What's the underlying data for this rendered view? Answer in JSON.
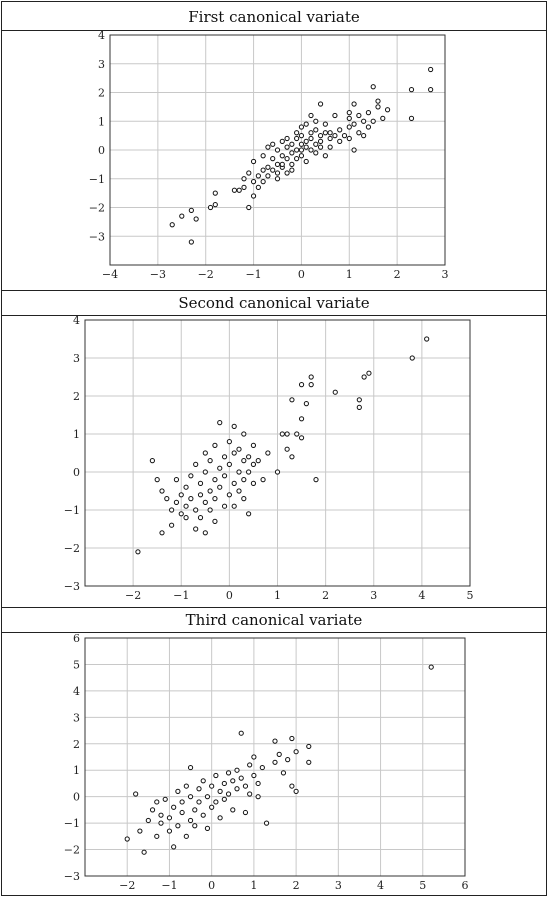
{
  "chart_data": [
    {
      "type": "scatter",
      "title": "First canonical variate",
      "xlim": [
        -4,
        3
      ],
      "ylim": [
        -4,
        4
      ],
      "xticks": [
        -4,
        -3,
        -2,
        -1,
        0,
        1,
        2,
        3
      ],
      "yticks": [
        -3,
        -2,
        -1,
        0,
        1,
        2,
        3,
        4
      ],
      "grid": true,
      "points": [
        [
          -2.7,
          -2.6
        ],
        [
          -2.5,
          -2.3
        ],
        [
          -2.3,
          -2.1
        ],
        [
          -2.3,
          -3.2
        ],
        [
          -2.2,
          -2.4
        ],
        [
          -1.9,
          -2.0
        ],
        [
          -1.8,
          -1.9
        ],
        [
          -1.8,
          -1.5
        ],
        [
          -1.4,
          -1.4
        ],
        [
          -1.3,
          -1.4
        ],
        [
          -1.2,
          -1.3
        ],
        [
          -1.2,
          -1.0
        ],
        [
          -1.1,
          -0.8
        ],
        [
          -1.1,
          -2.0
        ],
        [
          -1.0,
          -1.6
        ],
        [
          -1.0,
          -0.4
        ],
        [
          -1.0,
          -1.1
        ],
        [
          -0.9,
          -1.3
        ],
        [
          -0.9,
          -0.9
        ],
        [
          -0.8,
          -0.7
        ],
        [
          -0.8,
          -1.1
        ],
        [
          -0.8,
          -0.2
        ],
        [
          -0.7,
          -0.6
        ],
        [
          -0.7,
          -0.9
        ],
        [
          -0.7,
          0.1
        ],
        [
          -0.6,
          -0.7
        ],
        [
          -0.6,
          -0.3
        ],
        [
          -0.6,
          0.2
        ],
        [
          -0.5,
          -0.5
        ],
        [
          -0.5,
          -1.0
        ],
        [
          -0.5,
          0.0
        ],
        [
          -0.5,
          -0.8
        ],
        [
          -0.4,
          -0.2
        ],
        [
          -0.4,
          -0.6
        ],
        [
          -0.4,
          0.3
        ],
        [
          -0.4,
          -0.5
        ],
        [
          -0.3,
          -0.8
        ],
        [
          -0.3,
          0.1
        ],
        [
          -0.3,
          -0.3
        ],
        [
          -0.3,
          0.4
        ],
        [
          -0.2,
          -0.1
        ],
        [
          -0.2,
          -0.5
        ],
        [
          -0.2,
          0.2
        ],
        [
          -0.2,
          -0.7
        ],
        [
          -0.1,
          0.0
        ],
        [
          -0.1,
          0.4
        ],
        [
          -0.1,
          -0.3
        ],
        [
          -0.1,
          0.6
        ],
        [
          0.0,
          0.2
        ],
        [
          0.0,
          -0.2
        ],
        [
          0.0,
          0.5
        ],
        [
          0.0,
          0.8
        ],
        [
          0.0,
          0.0
        ],
        [
          0.1,
          0.3
        ],
        [
          0.1,
          -0.4
        ],
        [
          0.1,
          0.9
        ],
        [
          0.1,
          0.1
        ],
        [
          0.2,
          0.6
        ],
        [
          0.2,
          0.0
        ],
        [
          0.2,
          1.2
        ],
        [
          0.2,
          0.4
        ],
        [
          0.3,
          0.2
        ],
        [
          0.3,
          -0.1
        ],
        [
          0.3,
          0.7
        ],
        [
          0.3,
          1.0
        ],
        [
          0.4,
          0.5
        ],
        [
          0.4,
          0.1
        ],
        [
          0.4,
          1.6
        ],
        [
          0.4,
          0.3
        ],
        [
          0.5,
          0.6
        ],
        [
          0.5,
          -0.2
        ],
        [
          0.5,
          0.9
        ],
        [
          0.6,
          0.4
        ],
        [
          0.6,
          0.1
        ],
        [
          0.6,
          0.6
        ],
        [
          0.7,
          0.5
        ],
        [
          0.7,
          1.2
        ],
        [
          0.8,
          0.3
        ],
        [
          0.8,
          0.7
        ],
        [
          0.9,
          0.5
        ],
        [
          1.0,
          1.1
        ],
        [
          1.0,
          0.8
        ],
        [
          1.0,
          0.4
        ],
        [
          1.0,
          1.3
        ],
        [
          1.1,
          0.0
        ],
        [
          1.1,
          1.6
        ],
        [
          1.1,
          0.9
        ],
        [
          1.2,
          0.6
        ],
        [
          1.2,
          1.2
        ],
        [
          1.3,
          0.5
        ],
        [
          1.3,
          1.0
        ],
        [
          1.4,
          0.8
        ],
        [
          1.4,
          1.3
        ],
        [
          1.5,
          2.2
        ],
        [
          1.5,
          1.0
        ],
        [
          1.6,
          1.7
        ],
        [
          1.6,
          1.5
        ],
        [
          1.7,
          1.1
        ],
        [
          1.8,
          1.4
        ],
        [
          2.3,
          2.1
        ],
        [
          2.3,
          1.1
        ],
        [
          2.7,
          2.8
        ],
        [
          2.7,
          2.1
        ]
      ]
    },
    {
      "type": "scatter",
      "title": "Second canonical variate",
      "xlim": [
        -3,
        5
      ],
      "ylim": [
        -3,
        4
      ],
      "xticks": [
        -2,
        -1,
        0,
        1,
        2,
        3,
        4,
        5
      ],
      "yticks": [
        -3,
        -2,
        -1,
        0,
        1,
        2,
        3,
        4
      ],
      "grid": true,
      "points": [
        [
          -1.9,
          -2.1
        ],
        [
          -1.6,
          0.3
        ],
        [
          -1.5,
          -0.2
        ],
        [
          -1.4,
          -1.6
        ],
        [
          -1.4,
          -0.5
        ],
        [
          -1.3,
          -0.7
        ],
        [
          -1.2,
          -1.4
        ],
        [
          -1.2,
          -1.0
        ],
        [
          -1.1,
          -0.8
        ],
        [
          -1.1,
          -0.2
        ],
        [
          -1.0,
          -1.1
        ],
        [
          -1.0,
          -0.6
        ],
        [
          -0.9,
          -0.9
        ],
        [
          -0.9,
          -1.2
        ],
        [
          -0.9,
          -0.4
        ],
        [
          -0.8,
          -0.7
        ],
        [
          -0.8,
          -0.1
        ],
        [
          -0.7,
          -1.5
        ],
        [
          -0.7,
          -1.0
        ],
        [
          -0.7,
          0.2
        ],
        [
          -0.6,
          -0.6
        ],
        [
          -0.6,
          -0.3
        ],
        [
          -0.6,
          -1.2
        ],
        [
          -0.5,
          -0.8
        ],
        [
          -0.5,
          0.5
        ],
        [
          -0.5,
          -1.6
        ],
        [
          -0.5,
          0.0
        ],
        [
          -0.4,
          -0.5
        ],
        [
          -0.4,
          -1.0
        ],
        [
          -0.4,
          0.3
        ],
        [
          -0.3,
          -0.2
        ],
        [
          -0.3,
          -0.7
        ],
        [
          -0.3,
          0.7
        ],
        [
          -0.3,
          -1.3
        ],
        [
          -0.2,
          0.1
        ],
        [
          -0.2,
          -0.4
        ],
        [
          -0.2,
          1.3
        ],
        [
          -0.1,
          -0.9
        ],
        [
          -0.1,
          0.4
        ],
        [
          -0.1,
          -0.1
        ],
        [
          0.0,
          0.2
        ],
        [
          0.0,
          -0.6
        ],
        [
          0.0,
          0.8
        ],
        [
          0.1,
          -0.3
        ],
        [
          0.1,
          0.5
        ],
        [
          0.1,
          1.2
        ],
        [
          0.1,
          -0.9
        ],
        [
          0.2,
          0.0
        ],
        [
          0.2,
          0.6
        ],
        [
          0.2,
          -0.5
        ],
        [
          0.3,
          0.3
        ],
        [
          0.3,
          -0.2
        ],
        [
          0.3,
          1.0
        ],
        [
          0.3,
          -0.7
        ],
        [
          0.4,
          0.4
        ],
        [
          0.4,
          0.0
        ],
        [
          0.4,
          -1.1
        ],
        [
          0.5,
          0.7
        ],
        [
          0.5,
          0.2
        ],
        [
          0.5,
          -0.3
        ],
        [
          0.6,
          0.3
        ],
        [
          0.7,
          -0.2
        ],
        [
          0.8,
          0.5
        ],
        [
          1.0,
          0.0
        ],
        [
          1.1,
          1.0
        ],
        [
          1.2,
          1.0
        ],
        [
          1.2,
          0.6
        ],
        [
          1.3,
          0.4
        ],
        [
          1.3,
          1.9
        ],
        [
          1.4,
          1.0
        ],
        [
          1.5,
          1.4
        ],
        [
          1.5,
          0.9
        ],
        [
          1.5,
          2.3
        ],
        [
          1.6,
          1.8
        ],
        [
          1.7,
          2.5
        ],
        [
          1.7,
          2.3
        ],
        [
          1.8,
          -0.2
        ],
        [
          2.2,
          2.1
        ],
        [
          2.7,
          1.9
        ],
        [
          2.7,
          1.7
        ],
        [
          2.8,
          2.5
        ],
        [
          2.9,
          2.6
        ],
        [
          3.8,
          3.0
        ],
        [
          4.1,
          3.5
        ]
      ]
    },
    {
      "type": "scatter",
      "title": "Third canonical variate",
      "xlim": [
        -3,
        6
      ],
      "ylim": [
        -3,
        6
      ],
      "xticks": [
        -2,
        -1,
        0,
        1,
        2,
        3,
        4,
        5,
        6
      ],
      "yticks": [
        -3,
        -2,
        -1,
        0,
        1,
        2,
        3,
        4,
        5,
        6
      ],
      "grid": true,
      "points": [
        [
          -2.0,
          -1.6
        ],
        [
          -1.8,
          0.1
        ],
        [
          -1.7,
          -1.3
        ],
        [
          -1.6,
          -2.1
        ],
        [
          -1.5,
          -0.9
        ],
        [
          -1.4,
          -0.5
        ],
        [
          -1.3,
          -1.5
        ],
        [
          -1.3,
          -0.2
        ],
        [
          -1.2,
          -1.0
        ],
        [
          -1.2,
          -0.7
        ],
        [
          -1.1,
          -0.1
        ],
        [
          -1.0,
          -1.3
        ],
        [
          -1.0,
          -0.8
        ],
        [
          -0.9,
          -0.4
        ],
        [
          -0.9,
          -1.9
        ],
        [
          -0.8,
          0.2
        ],
        [
          -0.8,
          -1.1
        ],
        [
          -0.7,
          -0.6
        ],
        [
          -0.7,
          -0.2
        ],
        [
          -0.6,
          0.4
        ],
        [
          -0.6,
          -1.5
        ],
        [
          -0.5,
          -0.9
        ],
        [
          -0.5,
          0.0
        ],
        [
          -0.5,
          1.1
        ],
        [
          -0.4,
          -0.5
        ],
        [
          -0.4,
          -1.1
        ],
        [
          -0.3,
          0.3
        ],
        [
          -0.3,
          -0.2
        ],
        [
          -0.2,
          -0.7
        ],
        [
          -0.2,
          0.6
        ],
        [
          -0.1,
          0.0
        ],
        [
          -0.1,
          -1.2
        ],
        [
          0.0,
          -0.4
        ],
        [
          0.0,
          0.4
        ],
        [
          0.1,
          0.8
        ],
        [
          0.1,
          -0.2
        ],
        [
          0.2,
          0.2
        ],
        [
          0.2,
          -0.8
        ],
        [
          0.3,
          0.5
        ],
        [
          0.3,
          -0.1
        ],
        [
          0.4,
          0.9
        ],
        [
          0.4,
          0.1
        ],
        [
          0.5,
          -0.5
        ],
        [
          0.5,
          0.6
        ],
        [
          0.6,
          1.0
        ],
        [
          0.6,
          0.3
        ],
        [
          0.7,
          0.7
        ],
        [
          0.7,
          2.4
        ],
        [
          0.8,
          0.4
        ],
        [
          0.8,
          -0.6
        ],
        [
          0.9,
          1.2
        ],
        [
          0.9,
          0.1
        ],
        [
          1.0,
          0.8
        ],
        [
          1.0,
          1.5
        ],
        [
          1.1,
          0.5
        ],
        [
          1.1,
          0.0
        ],
        [
          1.2,
          1.1
        ],
        [
          1.3,
          -1.0
        ],
        [
          1.5,
          1.3
        ],
        [
          1.5,
          2.1
        ],
        [
          1.6,
          1.6
        ],
        [
          1.7,
          0.9
        ],
        [
          1.8,
          1.4
        ],
        [
          1.9,
          2.2
        ],
        [
          1.9,
          0.4
        ],
        [
          2.0,
          0.2
        ],
        [
          2.0,
          1.7
        ],
        [
          2.3,
          1.9
        ],
        [
          2.3,
          1.3
        ],
        [
          5.2,
          4.9
        ]
      ]
    }
  ]
}
